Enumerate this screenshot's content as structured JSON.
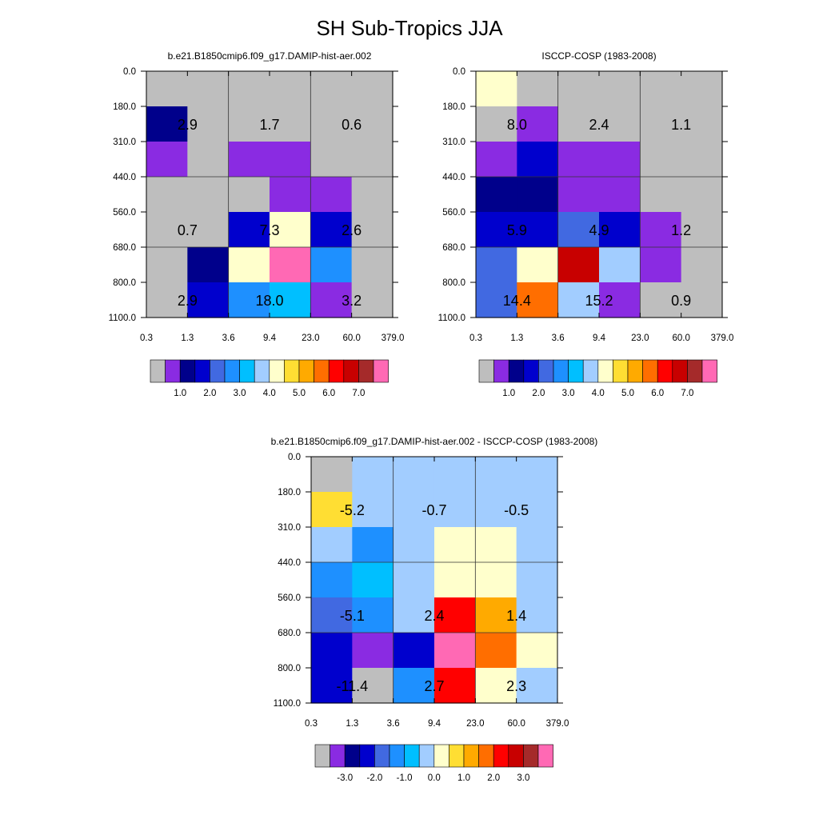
{
  "title": "SH Sub-Tropics JJA",
  "palettes": {
    "main": [
      "#bebebe",
      "#8a2be2",
      "#00008b",
      "#0000cd",
      "#4169e1",
      "#1e90ff",
      "#00bfff",
      "#a2cdff",
      "#ffffcc",
      "#ffde33",
      "#ffaa00",
      "#ff6e00",
      "#ff0000",
      "#c80000",
      "#a52a2a",
      "#ff69b4"
    ],
    "diff": [
      "#bebebe",
      "#8a2be2",
      "#00008b",
      "#0000cd",
      "#4169e1",
      "#1e90ff",
      "#00bfff",
      "#a2cdff",
      "#ffffcc",
      "#ffde33",
      "#ffaa00",
      "#ff6e00",
      "#ff0000",
      "#c80000",
      "#a52a2a",
      "#ff69b4"
    ]
  },
  "chart_data": [
    {
      "type": "heatmap",
      "title": "b.e21.B1850cmip6.f09_g17.DAMIP-hist-aer.002",
      "xticks": [
        "0.3",
        "1.3",
        "3.6",
        "9.4",
        "23.0",
        "60.0",
        "379.0"
      ],
      "yticks": [
        "0.0",
        "180.0",
        "310.0",
        "440.0",
        "560.0",
        "680.0",
        "800.0",
        "1100.0"
      ],
      "palette": "main",
      "colorbar_labels": [
        "1.0",
        "2.0",
        "3.0",
        "4.0",
        "5.0",
        "6.0",
        "7.0"
      ],
      "cells": [
        [
          0,
          0,
          0,
          0,
          0,
          0
        ],
        [
          2,
          0,
          0,
          0,
          0,
          0
        ],
        [
          1,
          0,
          1,
          1,
          0,
          0
        ],
        [
          0,
          0,
          0,
          1,
          1,
          0
        ],
        [
          0,
          0,
          3,
          8,
          3,
          0
        ],
        [
          0,
          2,
          8,
          15,
          5,
          0
        ],
        [
          0,
          3,
          5,
          6,
          1,
          0
        ]
      ],
      "labels": [
        {
          "text": "2.9",
          "col": 0,
          "row": 1
        },
        {
          "text": "1.7",
          "col": 2,
          "row": 1
        },
        {
          "text": "0.6",
          "col": 4,
          "row": 1
        },
        {
          "text": "0.7",
          "col": 0,
          "row": 4
        },
        {
          "text": "7.3",
          "col": 2,
          "row": 4
        },
        {
          "text": "2.6",
          "col": 4,
          "row": 4
        },
        {
          "text": "2.9",
          "col": 0,
          "row": 6
        },
        {
          "text": "18.0",
          "col": 2,
          "row": 6
        },
        {
          "text": "3.2",
          "col": 4,
          "row": 6
        }
      ]
    },
    {
      "type": "heatmap",
      "title": "ISCCP-COSP (1983-2008)",
      "xticks": [
        "0.3",
        "1.3",
        "3.6",
        "9.4",
        "23.0",
        "60.0",
        "379.0"
      ],
      "yticks": [
        "0.0",
        "180.0",
        "310.0",
        "440.0",
        "560.0",
        "680.0",
        "800.0",
        "1100.0"
      ],
      "palette": "main",
      "colorbar_labels": [
        "1.0",
        "2.0",
        "3.0",
        "4.0",
        "5.0",
        "6.0",
        "7.0"
      ],
      "cells": [
        [
          8,
          0,
          0,
          0,
          0,
          0
        ],
        [
          0,
          1,
          0,
          0,
          0,
          0
        ],
        [
          1,
          3,
          1,
          1,
          0,
          0
        ],
        [
          2,
          2,
          1,
          1,
          0,
          0
        ],
        [
          3,
          3,
          4,
          3,
          1,
          0
        ],
        [
          4,
          8,
          13,
          7,
          1,
          0
        ],
        [
          4,
          11,
          7,
          1,
          0,
          0
        ]
      ],
      "labels": [
        {
          "text": "8.0",
          "col": 0,
          "row": 1
        },
        {
          "text": "2.4",
          "col": 2,
          "row": 1
        },
        {
          "text": "1.1",
          "col": 4,
          "row": 1
        },
        {
          "text": "5.9",
          "col": 0,
          "row": 4
        },
        {
          "text": "4.9",
          "col": 2,
          "row": 4
        },
        {
          "text": "1.2",
          "col": 4,
          "row": 4
        },
        {
          "text": "14.4",
          "col": 0,
          "row": 6
        },
        {
          "text": "15.2",
          "col": 2,
          "row": 6
        },
        {
          "text": "0.9",
          "col": 4,
          "row": 6
        }
      ]
    },
    {
      "type": "heatmap",
      "title": "b.e21.B1850cmip6.f09_g17.DAMIP-hist-aer.002 - ISCCP-COSP (1983-2008)",
      "xticks": [
        "0.3",
        "1.3",
        "3.6",
        "9.4",
        "23.0",
        "60.0",
        "379.0"
      ],
      "yticks": [
        "0.0",
        "180.0",
        "310.0",
        "440.0",
        "560.0",
        "680.0",
        "800.0",
        "1100.0"
      ],
      "palette": "diff",
      "colorbar_labels": [
        "-3.0",
        "-2.0",
        "-1.0",
        "0.0",
        "1.0",
        "2.0",
        "3.0"
      ],
      "cells": [
        [
          0,
          7,
          7,
          7,
          7,
          7
        ],
        [
          9,
          7,
          7,
          7,
          7,
          7
        ],
        [
          7,
          5,
          7,
          8,
          8,
          7
        ],
        [
          5,
          6,
          7,
          8,
          8,
          7
        ],
        [
          4,
          5,
          7,
          12,
          10,
          7
        ],
        [
          3,
          1,
          3,
          15,
          11,
          8
        ],
        [
          3,
          0,
          5,
          12,
          8,
          7
        ]
      ],
      "labels": [
        {
          "text": "-5.2",
          "col": 0,
          "row": 1
        },
        {
          "text": "-0.7",
          "col": 2,
          "row": 1
        },
        {
          "text": "-0.5",
          "col": 4,
          "row": 1
        },
        {
          "text": "-5.1",
          "col": 0,
          "row": 4
        },
        {
          "text": "2.4",
          "col": 2,
          "row": 4
        },
        {
          "text": "1.4",
          "col": 4,
          "row": 4
        },
        {
          "text": "-11.4",
          "col": 0,
          "row": 6
        },
        {
          "text": "2.7",
          "col": 2,
          "row": 6
        },
        {
          "text": "2.3",
          "col": 4,
          "row": 6
        }
      ]
    }
  ]
}
